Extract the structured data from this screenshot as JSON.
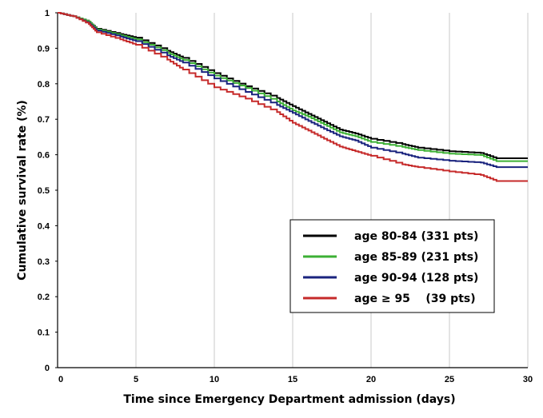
{
  "chart_data": {
    "type": "line",
    "xlabel": "Time since Emergency Department admission (days)",
    "ylabel": "Cumulative survival rate (%)",
    "xlim": [
      0,
      30
    ],
    "ylim": [
      0,
      1
    ],
    "x_ticks": [
      "0",
      "5",
      "10",
      "15",
      "20",
      "25",
      "30"
    ],
    "y_ticks": [
      "0",
      "0.1",
      "0.2",
      "0.3",
      "0.4",
      "0.5",
      "0.6",
      "0.7",
      "0.8",
      "0.9",
      "1"
    ],
    "grid": "vertical",
    "legend_position": "bottom-right",
    "series": [
      {
        "name": "age 80-84 (331 pts)",
        "color": "#000000",
        "x": [
          0,
          1,
          2,
          2.5,
          4,
          5,
          7,
          8,
          10,
          12,
          14,
          15,
          16,
          17,
          18,
          19,
          20,
          22,
          23,
          25,
          27,
          28,
          30
        ],
        "y": [
          1.0,
          0.99,
          0.975,
          0.955,
          0.94,
          0.93,
          0.893,
          0.873,
          0.83,
          0.793,
          0.76,
          0.737,
          0.715,
          0.693,
          0.671,
          0.66,
          0.645,
          0.63,
          0.62,
          0.61,
          0.605,
          0.59,
          0.59
        ]
      },
      {
        "name": "age 85-89 (231 pts)",
        "color": "#3cb034",
        "x": [
          0,
          1,
          2,
          2.5,
          4,
          5,
          7,
          8,
          10,
          12,
          14,
          15,
          16,
          17,
          18,
          19,
          20,
          22,
          23,
          25,
          27,
          28,
          30
        ],
        "y": [
          1.0,
          0.99,
          0.975,
          0.953,
          0.937,
          0.925,
          0.887,
          0.867,
          0.823,
          0.788,
          0.75,
          0.725,
          0.707,
          0.685,
          0.663,
          0.652,
          0.636,
          0.622,
          0.613,
          0.603,
          0.599,
          0.582,
          0.582
        ]
      },
      {
        "name": "age 90-94 (128 pts)",
        "color": "#1a237e",
        "x": [
          0,
          1,
          2,
          2.5,
          4,
          5,
          7,
          8,
          10,
          12,
          14,
          15,
          16,
          17,
          18,
          19,
          20,
          22,
          23,
          25,
          27,
          28,
          30
        ],
        "y": [
          1.0,
          0.99,
          0.97,
          0.95,
          0.933,
          0.92,
          0.88,
          0.86,
          0.815,
          0.777,
          0.74,
          0.718,
          0.695,
          0.673,
          0.652,
          0.64,
          0.62,
          0.603,
          0.592,
          0.583,
          0.578,
          0.565,
          0.565
        ]
      },
      {
        "name": "age ≥ 95    (39 pts)",
        "color": "#c62a2a",
        "x": [
          0,
          1,
          2,
          2.5,
          4,
          5,
          7,
          8,
          10,
          12,
          14,
          15,
          16,
          17,
          18,
          19,
          20,
          22,
          23,
          25,
          27,
          28,
          30
        ],
        "y": [
          1.0,
          0.99,
          0.968,
          0.945,
          0.925,
          0.91,
          0.868,
          0.84,
          0.79,
          0.758,
          0.72,
          0.69,
          0.668,
          0.645,
          0.623,
          0.61,
          0.597,
          0.573,
          0.565,
          0.553,
          0.543,
          0.526,
          0.526
        ]
      }
    ]
  }
}
